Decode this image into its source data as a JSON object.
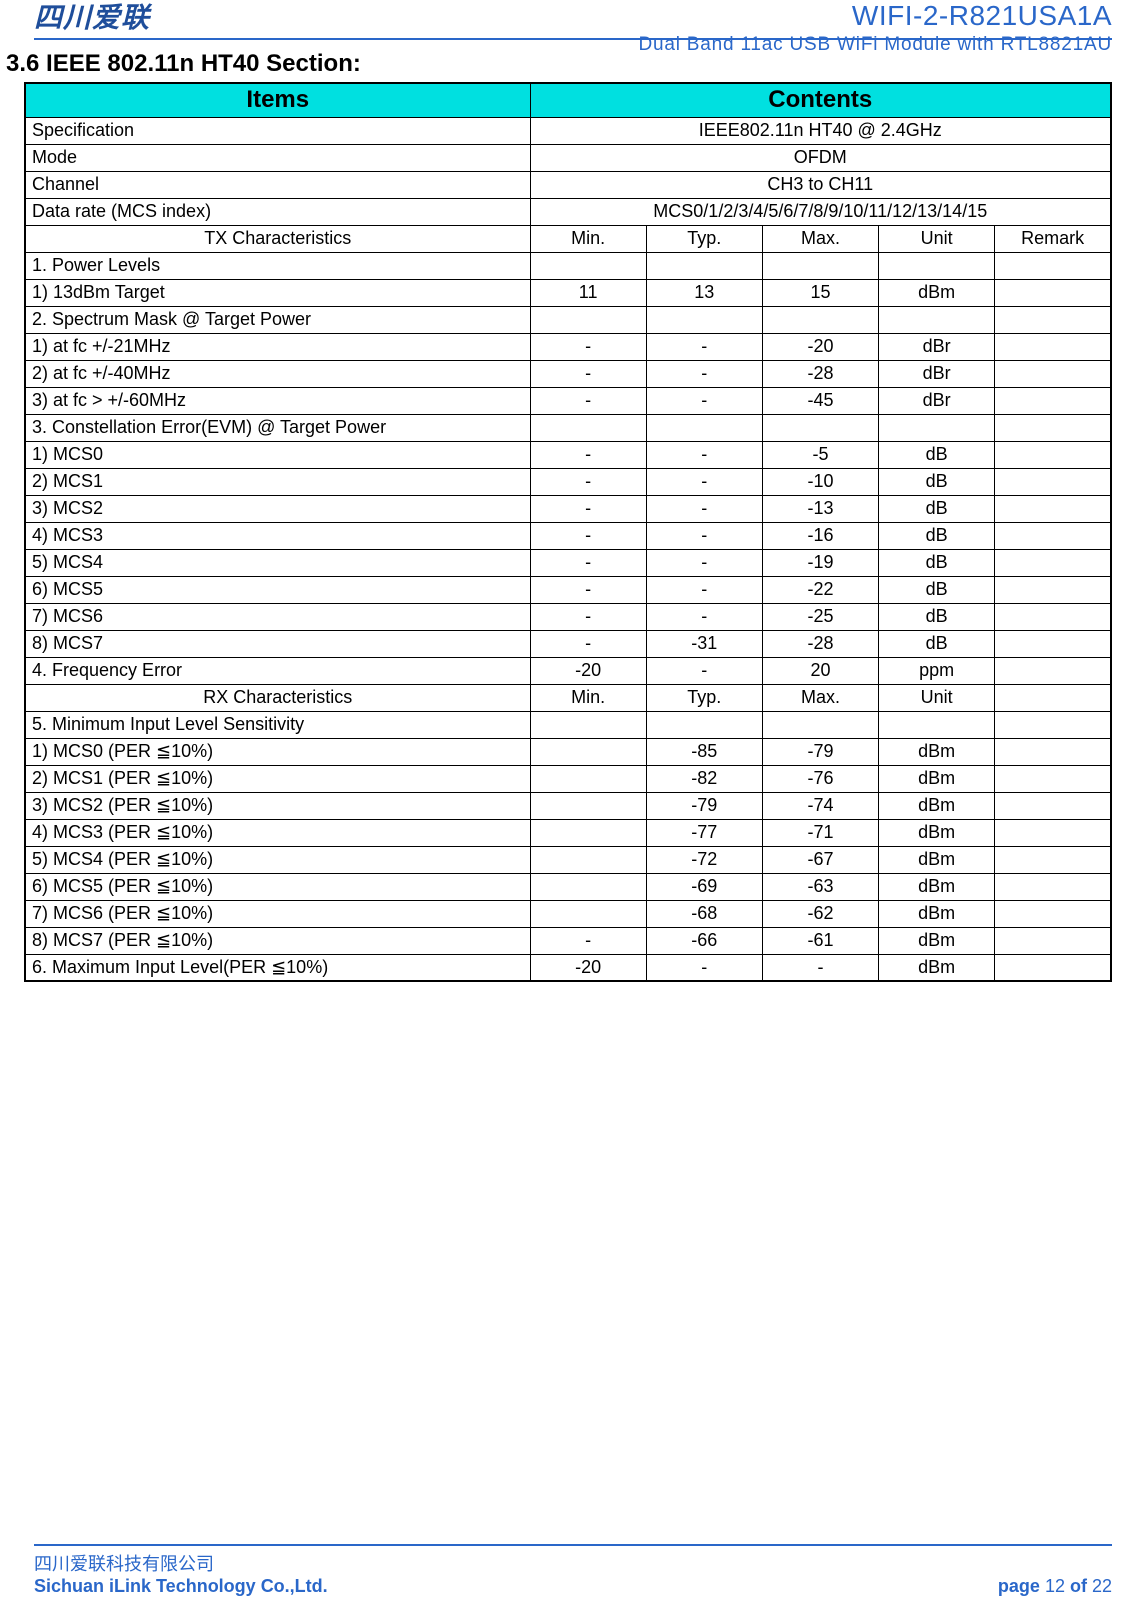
{
  "header": {
    "logo_text": "四川爱联",
    "title_main": "WIFI-2-R821USA1A",
    "title_sub": "Dual Band 11ac USB WiFi Module with RTL8821AU"
  },
  "section": {
    "number": "3.6",
    "title": "IEEE 802.11n HT40 Section:"
  },
  "colors": {
    "accent_blue": "#2a67c9",
    "header_cyan": "#00e0e0",
    "border": "#000000",
    "background": "#ffffff"
  },
  "table": {
    "header_left": "Items",
    "header_right": "Contents",
    "rows": [
      {
        "type": "kv",
        "label": "Specification",
        "value": "IEEE802.11n HT40 @ 2.4GHz"
      },
      {
        "type": "kv",
        "label": "Mode",
        "value": "OFDM"
      },
      {
        "type": "kv",
        "label": "Channel",
        "value": "CH3 to CH11"
      },
      {
        "type": "kv",
        "label": "Data rate (MCS index)",
        "value": "MCS0/1/2/3/4/5/6/7/8/9/10/11/12/13/14/15"
      },
      {
        "type": "subhead",
        "label": "TX Characteristics",
        "c1": "Min.",
        "c2": "Typ.",
        "c3": "Max.",
        "c4": "Unit",
        "c5": "Remark"
      },
      {
        "type": "data",
        "label": "1. Power Levels",
        "c1": "",
        "c2": "",
        "c3": "",
        "c4": "",
        "c5": ""
      },
      {
        "type": "data",
        "label": "1) 13dBm Target",
        "c1": "11",
        "c2": "13",
        "c3": "15",
        "c4": "dBm",
        "c5": ""
      },
      {
        "type": "data",
        "label": "2. Spectrum Mask @ Target Power",
        "c1": "",
        "c2": "",
        "c3": "",
        "c4": "",
        "c5": ""
      },
      {
        "type": "data",
        "label": "1) at fc +/-21MHz",
        "c1": "-",
        "c2": "-",
        "c3": "-20",
        "c4": "dBr",
        "c5": ""
      },
      {
        "type": "data",
        "label": "2) at fc +/-40MHz",
        "c1": "-",
        "c2": "-",
        "c3": "-28",
        "c4": "dBr",
        "c5": ""
      },
      {
        "type": "data",
        "label": "3) at fc > +/-60MHz",
        "c1": "-",
        "c2": "-",
        "c3": "-45",
        "c4": "dBr",
        "c5": ""
      },
      {
        "type": "data",
        "label": "3. Constellation Error(EVM) @ Target Power",
        "c1": "",
        "c2": "",
        "c3": "",
        "c4": "",
        "c5": ""
      },
      {
        "type": "data",
        "label": "1) MCS0",
        "c1": "-",
        "c2": "-",
        "c3": "-5",
        "c4": "dB",
        "c5": ""
      },
      {
        "type": "data",
        "label": "2) MCS1",
        "c1": "-",
        "c2": "-",
        "c3": "-10",
        "c4": "dB",
        "c5": ""
      },
      {
        "type": "data",
        "label": "3) MCS2",
        "c1": "-",
        "c2": "-",
        "c3": "-13",
        "c4": "dB",
        "c5": ""
      },
      {
        "type": "data",
        "label": "4) MCS3",
        "c1": "-",
        "c2": "-",
        "c3": "-16",
        "c4": "dB",
        "c5": ""
      },
      {
        "type": "data",
        "label": "5) MCS4",
        "c1": "-",
        "c2": "-",
        "c3": "-19",
        "c4": "dB",
        "c5": ""
      },
      {
        "type": "data",
        "label": "6) MCS5",
        "c1": "-",
        "c2": "-",
        "c3": "-22",
        "c4": "dB",
        "c5": ""
      },
      {
        "type": "data",
        "label": "7) MCS6",
        "c1": "-",
        "c2": "-",
        "c3": "-25",
        "c4": "dB",
        "c5": ""
      },
      {
        "type": "data",
        "label": "8) MCS7",
        "c1": "-",
        "c2": "-31",
        "c3": "-28",
        "c4": "dB",
        "c5": ""
      },
      {
        "type": "data",
        "label": "4. Frequency Error",
        "c1": "-20",
        "c2": "-",
        "c3": "20",
        "c4": "ppm",
        "c5": ""
      },
      {
        "type": "subhead",
        "label": "RX Characteristics",
        "c1": "Min.",
        "c2": "Typ.",
        "c3": "Max.",
        "c4": "Unit",
        "c5": ""
      },
      {
        "type": "data",
        "label": "5. Minimum Input Level Sensitivity",
        "c1": "",
        "c2": "",
        "c3": "",
        "c4": "",
        "c5": ""
      },
      {
        "type": "data",
        "label": "1) MCS0 (PER ≦10%)",
        "c1": "",
        "c2": "-85",
        "c3": "-79",
        "c4": "dBm",
        "c5": ""
      },
      {
        "type": "data",
        "label": "2) MCS1 (PER ≦10%)",
        "c1": "",
        "c2": "-82",
        "c3": "-76",
        "c4": "dBm",
        "c5": ""
      },
      {
        "type": "data",
        "label": "3) MCS2 (PER ≦10%)",
        "c1": "",
        "c2": "-79",
        "c3": "-74",
        "c4": "dBm",
        "c5": ""
      },
      {
        "type": "data",
        "label": "4) MCS3 (PER ≦10%)",
        "c1": "",
        "c2": "-77",
        "c3": "-71",
        "c4": "dBm",
        "c5": ""
      },
      {
        "type": "data",
        "label": "5) MCS4 (PER ≦10%)",
        "c1": "",
        "c2": "-72",
        "c3": "-67",
        "c4": "dBm",
        "c5": ""
      },
      {
        "type": "data",
        "label": "6) MCS5 (PER ≦10%)",
        "c1": "",
        "c2": "-69",
        "c3": "-63",
        "c4": "dBm",
        "c5": ""
      },
      {
        "type": "data",
        "label": "7) MCS6 (PER ≦10%)",
        "c1": "",
        "c2": "-68",
        "c3": "-62",
        "c4": "dBm",
        "c5": ""
      },
      {
        "type": "data",
        "label": "8) MCS7 (PER ≦10%)",
        "c1": "-",
        "c2": "-66",
        "c3": "-61",
        "c4": "dBm",
        "c5": ""
      },
      {
        "type": "data",
        "label": "6. Maximum Input Level(PER ≦10%)",
        "c1": "-20",
        "c2": "-",
        "c3": "-",
        "c4": "dBm",
        "c5": ""
      }
    ]
  },
  "footer": {
    "company_cn": "四川爱联科技有限公司",
    "company_en": "Sichuan iLink Technology Co.,Ltd.",
    "page_label": "page ",
    "page_current": "12",
    "page_of": " of ",
    "page_total": "22"
  }
}
